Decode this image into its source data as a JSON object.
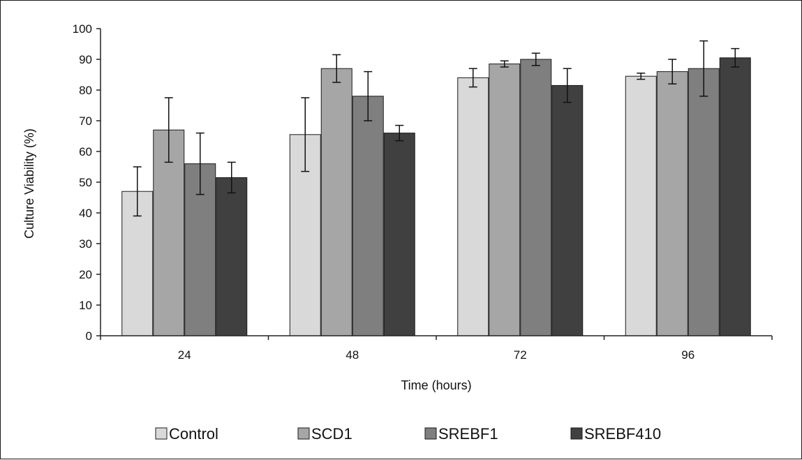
{
  "chart_data": {
    "type": "bar",
    "title": "",
    "xlabel": "Time (hours)",
    "ylabel": "Culture Viability (%)",
    "categories": [
      "24",
      "48",
      "72",
      "96"
    ],
    "ylim": [
      0,
      100
    ],
    "yticks": [
      0,
      10,
      20,
      30,
      40,
      50,
      60,
      70,
      80,
      90,
      100
    ],
    "grid": false,
    "legend_position": "bottom",
    "series": [
      {
        "name": "Control",
        "color": "#d9d9d9",
        "values": [
          47,
          65.5,
          84,
          84.5
        ],
        "errors": [
          8,
          12,
          3,
          1
        ]
      },
      {
        "name": "SCD1",
        "color": "#a6a6a6",
        "values": [
          67,
          87,
          88.5,
          86
        ],
        "errors": [
          10.5,
          4.5,
          1,
          4
        ]
      },
      {
        "name": "SREBF1",
        "color": "#7f7f7f",
        "values": [
          56,
          78,
          90,
          87
        ],
        "errors": [
          10,
          8,
          2,
          9
        ]
      },
      {
        "name": "SREBF410",
        "color": "#404040",
        "values": [
          51.5,
          66,
          81.5,
          90.5
        ],
        "errors": [
          5,
          2.5,
          5.5,
          3
        ]
      }
    ]
  }
}
